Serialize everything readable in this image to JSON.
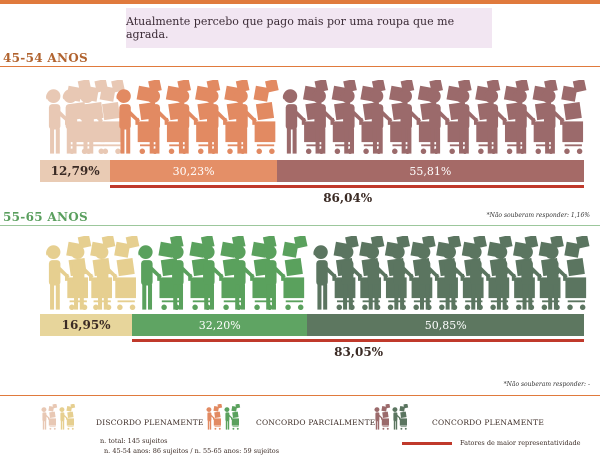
{
  "title": "Atualmente percebo que pago mais por uma roupa que me agrada.",
  "chart_data": [
    {
      "type": "bar",
      "group": "45-54 ANOS",
      "categories": [
        "DISCORDO PLENAMENTE",
        "CONCORDO PARCIALMENTE",
        "CONCORDO PLENAMENTE"
      ],
      "values": [
        12.79,
        30.23,
        55.81
      ],
      "labels": [
        "12,79%",
        "30,23%",
        "55,81%"
      ],
      "highlight_total": "86,04%",
      "colors": [
        "#e9cbb4",
        "#e48f67",
        "#a56a67"
      ],
      "icon_colors": [
        "#e8c8b4",
        "#e28a62",
        "#9b6a6b"
      ],
      "note": "*Não souberam responder: 1,16%"
    },
    {
      "type": "bar",
      "group": "55-65 ANOS",
      "categories": [
        "DISCORDO PLENAMENTE",
        "CONCORDO PARCIALMENTE",
        "CONCORDO PLENAMENTE"
      ],
      "values": [
        16.95,
        32.2,
        50.85
      ],
      "labels": [
        "16,95%",
        "32,20%",
        "50,85%"
      ],
      "highlight_total": "83,05%",
      "colors": [
        "#e7d59b",
        "#5fa463",
        "#5d7760"
      ],
      "icon_colors": [
        "#e6cf90",
        "#5aa15d",
        "#5b7560"
      ],
      "note": "*Não souberam responder: -"
    }
  ],
  "legend": {
    "items": [
      "DISCORDO PLENAMENTE",
      "CONCORDO PARCIALMENTE",
      "CONCORDO PLENAMENTE"
    ],
    "highlight": "Fatores de maior representatividade",
    "sample_total": "n. total: 145 sujeitos",
    "sample_groups": "n. 45-54 anos: 86 sujeitos / n. 55-65 anos: 59 sujeitos"
  }
}
